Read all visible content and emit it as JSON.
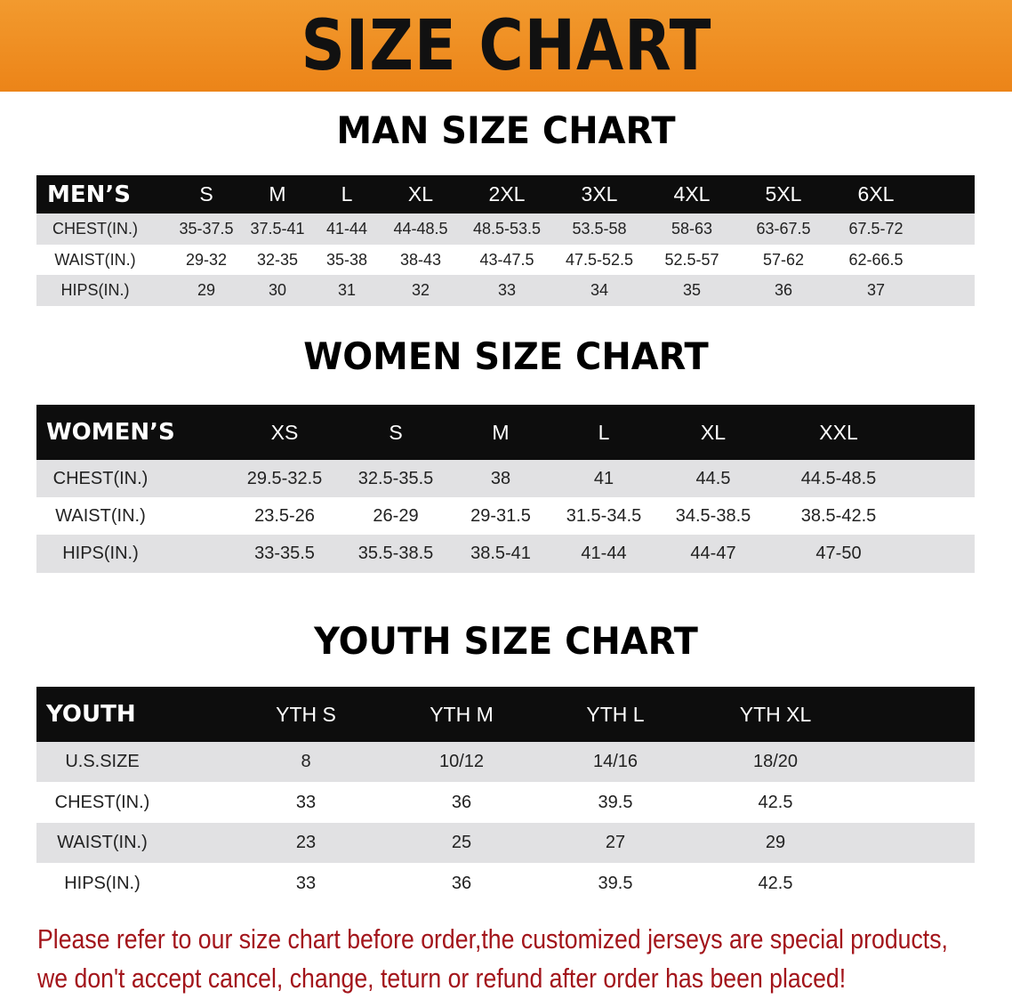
{
  "banner_title": "SIZE CHART",
  "men": {
    "title": "MAN SIZE CHART",
    "headers": [
      "MEN’S",
      "S",
      "M",
      "L",
      "XL",
      "2XL",
      "3XL",
      "4XL",
      "5XL",
      "6XL"
    ],
    "rows": [
      [
        "CHEST(IN.)",
        "35-37.5",
        "37.5-41",
        "41-44",
        "44-48.5",
        "48.5-53.5",
        "53.5-58",
        "58-63",
        "63-67.5",
        "67.5-72"
      ],
      [
        "WAIST(IN.)",
        "29-32",
        "32-35",
        "35-38",
        "38-43",
        "43-47.5",
        "47.5-52.5",
        "52.5-57",
        "57-62",
        "62-66.5"
      ],
      [
        "HIPS(IN.)",
        "29",
        "30",
        "31",
        "32",
        "33",
        "34",
        "35",
        "36",
        "37"
      ]
    ]
  },
  "women": {
    "title": "WOMEN SIZE CHART",
    "headers": [
      "WOMEN’S",
      "XS",
      "S",
      "M",
      "L",
      "XL",
      "XXL"
    ],
    "rows": [
      [
        "CHEST(IN.)",
        "29.5-32.5",
        "32.5-35.5",
        "38",
        "41",
        "44.5",
        "44.5-48.5"
      ],
      [
        "WAIST(IN.)",
        "23.5-26",
        "26-29",
        "29-31.5",
        "31.5-34.5",
        "34.5-38.5",
        "38.5-42.5"
      ],
      [
        "HIPS(IN.)",
        "33-35.5",
        "35.5-38.5",
        "38.5-41",
        "41-44",
        "44-47",
        "47-50"
      ]
    ]
  },
  "youth": {
    "title": "YOUTH SIZE CHART",
    "headers": [
      "YOUTH",
      "YTH S",
      "YTH M",
      "YTH L",
      "YTH XL"
    ],
    "rows": [
      [
        "U.S.SIZE",
        "8",
        "10/12",
        "14/16",
        "18/20"
      ],
      [
        "CHEST(IN.)",
        "33",
        "36",
        "39.5",
        "42.5"
      ],
      [
        "WAIST(IN.)",
        "23",
        "25",
        "27",
        "29"
      ],
      [
        "HIPS(IN.)",
        "33",
        "36",
        "39.5",
        "42.5"
      ]
    ]
  },
  "notice": {
    "line1": "Please refer to our size chart before order,the customized jerseys are special products,",
    "line2": "we don't accept cancel, change, teturn or refund after order has been placed!"
  }
}
